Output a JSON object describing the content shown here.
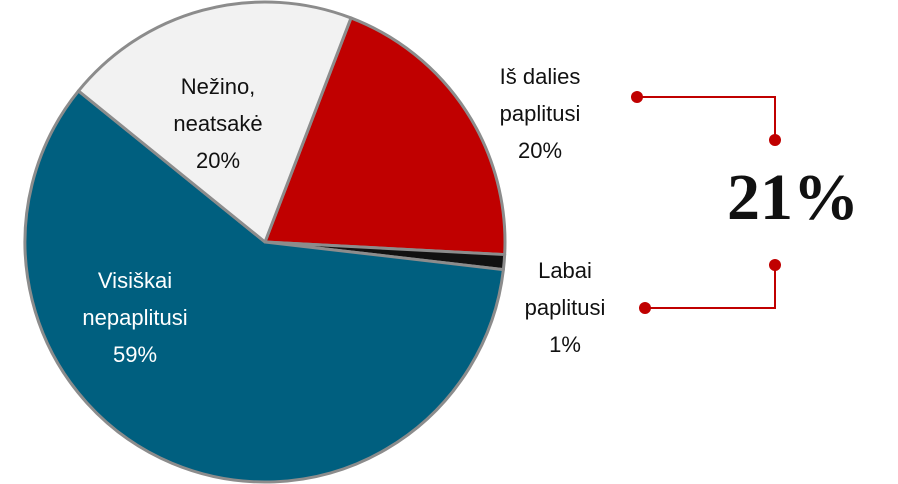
{
  "chart_data": {
    "type": "pie",
    "categories": [
      "Iš dalies paplitusi",
      "Labai paplitusi",
      "Visiškai nepaplitusi",
      "Nežino, neatsakė"
    ],
    "values": [
      20,
      1,
      59,
      20
    ],
    "value_labels": [
      "20%",
      "1%",
      "59%",
      "20%"
    ],
    "colors": [
      "#c00000",
      "#111111",
      "#005f7f",
      "#f2f2f2"
    ],
    "annotation": "21%"
  }
}
